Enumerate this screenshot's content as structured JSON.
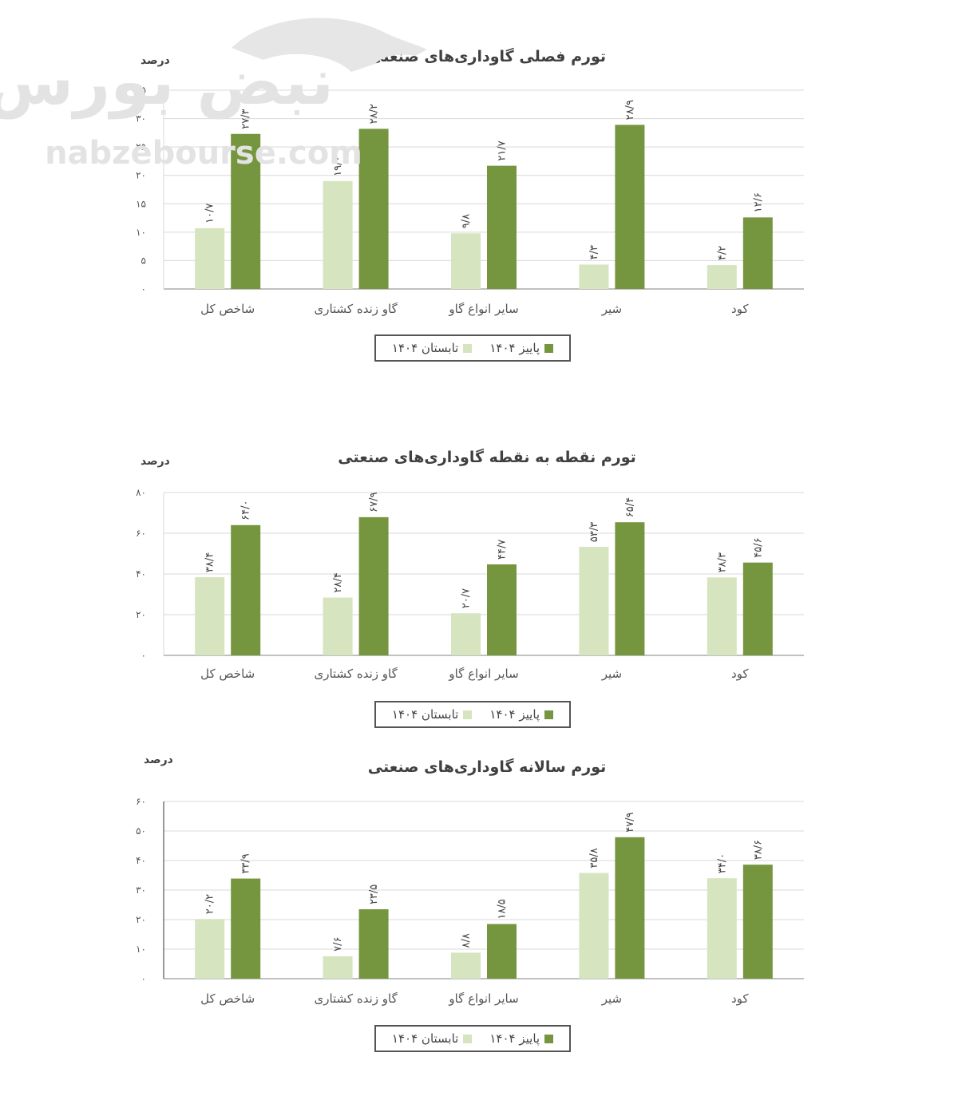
{
  "colors": {
    "summer": "#d6e4bf",
    "autumn": "#76953f",
    "grid": "#d9d9d9",
    "axis": "#808080"
  },
  "watermark": {
    "brand": "نبض بورس",
    "url": "nabzebourse.com"
  },
  "chart_data": [
    {
      "type": "bar",
      "title": "تورم فصلی گاوداری‌های صنعتی",
      "ylabel": "درصد",
      "ylim": [
        0,
        35
      ],
      "yticks": [
        "۰",
        "۵",
        "۱۰",
        "۱۵",
        "۲۰",
        "۲۵",
        "۳۰",
        "۳۵"
      ],
      "ytick_values": [
        0,
        5,
        10,
        15,
        20,
        25,
        30,
        35
      ],
      "categories": [
        "شاخص کل",
        "گاو زنده کشتاری",
        "سایر انواع گاو",
        "شیر",
        "کود"
      ],
      "series": [
        {
          "name": "تابستان ۱۴۰۴",
          "values": [
            10.7,
            19.0,
            9.8,
            4.3,
            4.2
          ],
          "labels": [
            "۱۰/۷",
            "۱۹/۰",
            "۹/۸",
            "۴/۳",
            "۴/۲"
          ]
        },
        {
          "name": "پاییز ۱۴۰۴",
          "values": [
            27.3,
            28.2,
            21.7,
            28.9,
            12.6
          ],
          "labels": [
            "۲۷/۳",
            "۲۸/۲",
            "۲۱/۷",
            "۲۸/۹",
            "۱۲/۶"
          ]
        }
      ],
      "legend_position": "bottom"
    },
    {
      "type": "bar",
      "title": "تورم نقطه به نقطه گاوداری‌های صنعتی",
      "ylabel": "درصد",
      "ylim": [
        0,
        80
      ],
      "yticks": [
        "۰",
        "۲۰",
        "۴۰",
        "۶۰",
        "۸۰"
      ],
      "ytick_values": [
        0,
        20,
        40,
        60,
        80
      ],
      "categories": [
        "شاخص کل",
        "گاو زنده کشتاری",
        "سایر انواع گاو",
        "شیر",
        "کود"
      ],
      "series": [
        {
          "name": "تابستان ۱۴۰۴",
          "values": [
            38.4,
            28.4,
            20.7,
            53.3,
            38.3
          ],
          "labels": [
            "۳۸/۴",
            "۲۸/۴",
            "۲۰/۷",
            "۵۳/۳",
            "۳۸/۳"
          ]
        },
        {
          "name": "پاییز ۱۴۰۴",
          "values": [
            64.0,
            67.9,
            44.7,
            65.4,
            45.6
          ],
          "labels": [
            "۶۴/۰",
            "۶۷/۹",
            "۴۴/۷",
            "۶۵/۴",
            "۴۵/۶"
          ]
        }
      ],
      "legend_position": "bottom"
    },
    {
      "type": "bar",
      "title": "تورم سالانه گاوداری‌های صنعتی",
      "ylabel": "درصد",
      "ylim": [
        0,
        60
      ],
      "yticks": [
        "۰",
        "۱۰",
        "۲۰",
        "۳۰",
        "۴۰",
        "۵۰",
        "۶۰"
      ],
      "ytick_values": [
        0,
        10,
        20,
        30,
        40,
        50,
        60
      ],
      "categories": [
        "شاخص کل",
        "گاو زنده کشتاری",
        "سایر انواع گاو",
        "شیر",
        "کود"
      ],
      "series": [
        {
          "name": "تابستان ۱۴۰۴",
          "values": [
            20.2,
            7.6,
            8.8,
            35.8,
            34.0
          ],
          "labels": [
            "۲۰/۲",
            "۷/۶",
            "۸/۸",
            "۳۵/۸",
            "۳۴/۰"
          ]
        },
        {
          "name": "پاییز ۱۴۰۴",
          "values": [
            33.9,
            23.5,
            18.5,
            47.9,
            38.6
          ],
          "labels": [
            "۳۳/۹",
            "۲۳/۵",
            "۱۸/۵",
            "۴۷/۹",
            "۳۸/۶"
          ]
        }
      ],
      "legend_position": "bottom"
    }
  ]
}
